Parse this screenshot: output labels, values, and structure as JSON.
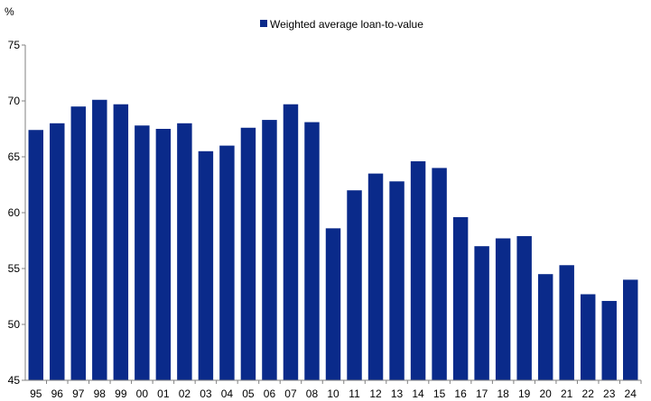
{
  "chart_data": {
    "type": "bar",
    "ylabel": "%",
    "ylim": [
      45,
      75
    ],
    "yticks": [
      45,
      50,
      55,
      60,
      65,
      70,
      75
    ],
    "categories": [
      "95",
      "96",
      "97",
      "98",
      "99",
      "00",
      "01",
      "02",
      "03",
      "04",
      "05",
      "06",
      "07",
      "08",
      "10",
      "11",
      "12",
      "13",
      "14",
      "15",
      "16",
      "17",
      "18",
      "19",
      "20",
      "21",
      "22",
      "23",
      "24"
    ],
    "series": [
      {
        "name": "Weighted average loan-to-value",
        "color": "#0a2a8a",
        "values": [
          67.4,
          68.0,
          69.5,
          70.1,
          69.7,
          67.8,
          67.5,
          68.0,
          65.5,
          66.0,
          67.6,
          68.3,
          69.7,
          68.1,
          58.6,
          62.0,
          63.5,
          62.8,
          64.6,
          64.0,
          59.6,
          57.0,
          57.7,
          57.9,
          54.5,
          55.3,
          52.7,
          52.1,
          54.0
        ]
      }
    ],
    "grid": false,
    "legend_position": "top-center"
  }
}
